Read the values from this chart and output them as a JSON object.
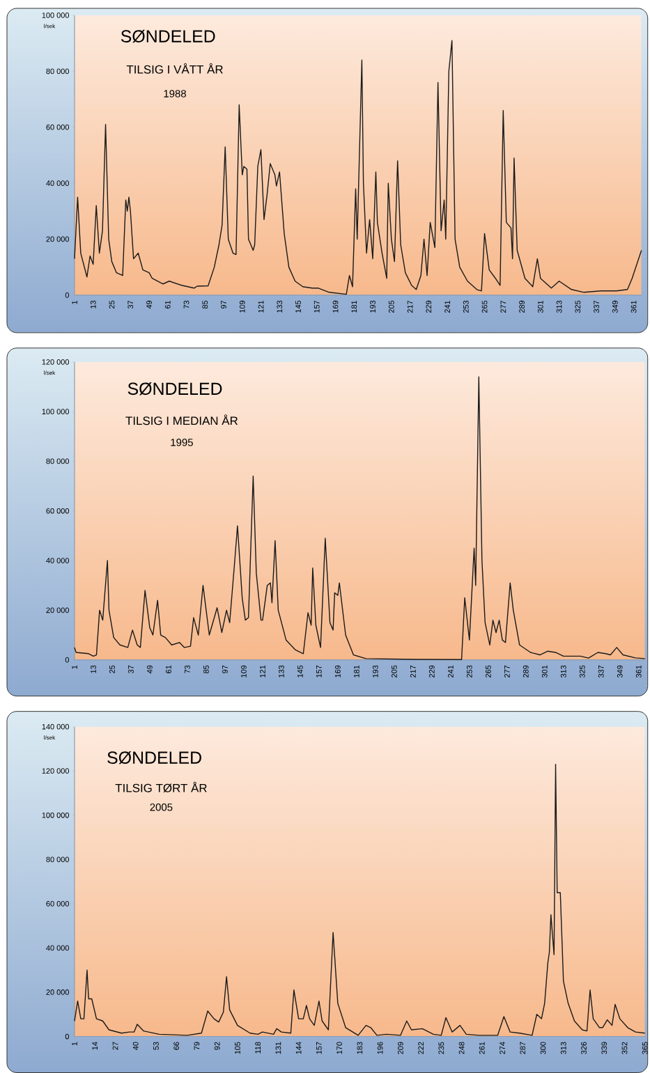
{
  "chart_data": [
    {
      "type": "line",
      "title": "SØNDELED",
      "subtitle": "TILSIG I VÅTT ÅR",
      "annotations": [
        "1988"
      ],
      "ylabel": "l/sek",
      "color": "#1a1a1a",
      "line_style": "solid",
      "xlim": [
        1,
        366
      ],
      "xticks": [
        1,
        13,
        25,
        37,
        49,
        61,
        73,
        85,
        97,
        109,
        121,
        133,
        145,
        157,
        169,
        181,
        193,
        205,
        217,
        229,
        241,
        253,
        265,
        277,
        289,
        301,
        313,
        325,
        337,
        349,
        361
      ],
      "ylim": [
        0,
        100000
      ],
      "yticks": [
        0,
        {
          "value": 20000,
          "label": "20 000"
        },
        {
          "value": 40000,
          "label": "40 000"
        },
        {
          "value": 60000,
          "label": "60 000"
        },
        {
          "value": 80000,
          "label": "80 000"
        },
        {
          "value": 100000,
          "label": "100 000"
        }
      ],
      "x": [
        1,
        3,
        5,
        9,
        11,
        13,
        15,
        17,
        19,
        21,
        23,
        25,
        28,
        32,
        34,
        35,
        36,
        37,
        39,
        42,
        45,
        49,
        51,
        58,
        62,
        70,
        78,
        80,
        87,
        91,
        94,
        96,
        98,
        100,
        103,
        105,
        107,
        109,
        110,
        112,
        113,
        116,
        117,
        119,
        121,
        123,
        125,
        127,
        130,
        131,
        133,
        136,
        139,
        143,
        148,
        154,
        158,
        165,
        176,
        178,
        180,
        182,
        183,
        186,
        187,
        189,
        191,
        193,
        195,
        196,
        199,
        202,
        203,
        205,
        207,
        209,
        211,
        214,
        218,
        221,
        224,
        226,
        228,
        230,
        233,
        235,
        237,
        239,
        240,
        242,
        244,
        246,
        249,
        254,
        260,
        263,
        265,
        268,
        272,
        275,
        277,
        279,
        282,
        283,
        284,
        286,
        291,
        296,
        299,
        301,
        308,
        313,
        321,
        329,
        340,
        350,
        357,
        360,
        366
      ],
      "values": [
        13000,
        35000,
        15000,
        6500,
        14000,
        11000,
        32000,
        15000,
        23000,
        61000,
        20000,
        12000,
        8000,
        7000,
        34000,
        30000,
        35000,
        30000,
        13000,
        15000,
        9000,
        8000,
        6000,
        4000,
        5000,
        3500,
        2500,
        3200,
        3300,
        10000,
        18000,
        25000,
        53000,
        20000,
        15000,
        14500,
        68000,
        43000,
        46000,
        45000,
        20000,
        16000,
        18000,
        46000,
        52000,
        27000,
        36000,
        47000,
        43000,
        39000,
        44000,
        22000,
        10000,
        5000,
        3000,
        2500,
        2500,
        1000,
        300,
        7000,
        3000,
        38000,
        20000,
        84000,
        40000,
        15000,
        27000,
        13000,
        44000,
        26000,
        15000,
        6000,
        40000,
        20000,
        12000,
        48000,
        18000,
        8000,
        3500,
        2000,
        7000,
        20000,
        7000,
        26000,
        17000,
        76000,
        23000,
        34000,
        20000,
        80000,
        91000,
        20000,
        10000,
        5000,
        2000,
        1500,
        22000,
        9000,
        6000,
        3500,
        66000,
        26000,
        24000,
        13000,
        49000,
        16000,
        6000,
        3000,
        13000,
        6000,
        2500,
        5000,
        2000,
        1000,
        1500,
        1500,
        2000,
        6000,
        16000
      ]
    },
    {
      "type": "line",
      "title": "SØNDELED",
      "subtitle": "TILSIG I MEDIAN ÅR",
      "annotations": [
        "1995"
      ],
      "ylabel": "l/sek",
      "color": "#1a1a1a",
      "line_style": "solid",
      "xlim": [
        1,
        365
      ],
      "xticks": [
        1,
        13,
        25,
        37,
        49,
        61,
        73,
        85,
        97,
        109,
        121,
        133,
        145,
        157,
        169,
        181,
        193,
        205,
        217,
        229,
        241,
        253,
        265,
        277,
        289,
        301,
        313,
        325,
        337,
        349,
        361
      ],
      "ylim": [
        0,
        120000
      ],
      "yticks": [
        0,
        {
          "value": 20000,
          "label": "20 000"
        },
        {
          "value": 40000,
          "label": "40 000"
        },
        {
          "value": 60000,
          "label": "60 000"
        },
        {
          "value": 80000,
          "label": "80 000"
        },
        {
          "value": 100000,
          "label": "100 000"
        },
        {
          "value": 120000,
          "label": "120 000"
        }
      ],
      "x": [
        1,
        2,
        10,
        13,
        15,
        17,
        19,
        22,
        23,
        26,
        30,
        35,
        38,
        41,
        43,
        46,
        49,
        51,
        54,
        56,
        59,
        63,
        68,
        71,
        75,
        77,
        80,
        83,
        87,
        92,
        95,
        98,
        100,
        103,
        105,
        108,
        110,
        112,
        115,
        117,
        120,
        121,
        124,
        126,
        127,
        129,
        131,
        136,
        142,
        147,
        150,
        152,
        153,
        155,
        158,
        161,
        164,
        166,
        167,
        169,
        170,
        174,
        179,
        187,
        218,
        248,
        250,
        253,
        256,
        257,
        259,
        261,
        263,
        266,
        268,
        270,
        272,
        274,
        276,
        279,
        281,
        285,
        292,
        298,
        303,
        308,
        313,
        324,
        329,
        335,
        340,
        343,
        347,
        351,
        359,
        365
      ],
      "values": [
        5000,
        3000,
        2500,
        1500,
        2000,
        20000,
        16000,
        40000,
        20000,
        9000,
        6000,
        5000,
        12000,
        6000,
        5000,
        28000,
        13000,
        10000,
        24000,
        10000,
        9000,
        6000,
        7000,
        5000,
        5500,
        17000,
        10000,
        30000,
        10000,
        21000,
        11000,
        20000,
        15000,
        38000,
        54000,
        25000,
        16000,
        17000,
        74000,
        35000,
        16000,
        16000,
        30000,
        31000,
        23000,
        48000,
        20000,
        8000,
        4000,
        2500,
        19000,
        14000,
        37000,
        14000,
        5000,
        49000,
        15000,
        12000,
        27000,
        26000,
        31000,
        10000,
        2000,
        500,
        200,
        100,
        25000,
        8000,
        45000,
        30000,
        114000,
        40000,
        15000,
        6000,
        16000,
        11000,
        16000,
        8000,
        7000,
        31000,
        20000,
        6000,
        3000,
        2000,
        3500,
        3000,
        1500,
        1500,
        700,
        3000,
        2500,
        2000,
        5000,
        2000,
        800,
        500
      ]
    },
    {
      "type": "line",
      "title": "SØNDELED",
      "subtitle": "TILSIG TØRT ÅR",
      "annotations": [
        "2005"
      ],
      "ylabel": "l/sek",
      "color": "#1a1a1a",
      "line_style": "solid",
      "xlim": [
        1,
        365
      ],
      "xticks": [
        1,
        14,
        27,
        40,
        53,
        66,
        79,
        92,
        105,
        118,
        131,
        144,
        157,
        170,
        183,
        196,
        209,
        222,
        235,
        248,
        261,
        274,
        287,
        300,
        313,
        326,
        339,
        352,
        365
      ],
      "ylim": [
        0,
        140000
      ],
      "yticks": [
        0,
        {
          "value": 20000,
          "label": "20 000"
        },
        {
          "value": 40000,
          "label": "40 000"
        },
        {
          "value": 60000,
          "label": "60 000"
        },
        {
          "value": 80000,
          "label": "80 000"
        },
        {
          "value": 100000,
          "label": "100 000"
        },
        {
          "value": 120000,
          "label": "120 000"
        },
        {
          "value": 140000,
          "label": "140 000"
        }
      ],
      "x": [
        1,
        3,
        5,
        7,
        9,
        10,
        12,
        15,
        19,
        23,
        31,
        36,
        39,
        41,
        45,
        55,
        73,
        82,
        86,
        90,
        93,
        96,
        98,
        100,
        105,
        113,
        118,
        121,
        128,
        130,
        133,
        139,
        141,
        144,
        147,
        149,
        151,
        154,
        157,
        159,
        163,
        166,
        169,
        174,
        182,
        187,
        190,
        194,
        200,
        209,
        213,
        216,
        223,
        230,
        235,
        238,
        242,
        247,
        251,
        259,
        271,
        275,
        279,
        285,
        293,
        296,
        299,
        301,
        303,
        304,
        305,
        307,
        308,
        309,
        311,
        313,
        316,
        320,
        325,
        328,
        330,
        332,
        336,
        338,
        341,
        344,
        346,
        349,
        354,
        359,
        365
      ],
      "values": [
        7000,
        16000,
        8000,
        8000,
        30000,
        17000,
        17000,
        8000,
        7000,
        3000,
        1500,
        2000,
        2000,
        5500,
        2500,
        1000,
        500,
        1500,
        11500,
        8000,
        6500,
        11000,
        27000,
        12000,
        5000,
        1500,
        1000,
        2000,
        1000,
        3500,
        2000,
        1500,
        21000,
        8000,
        8000,
        14000,
        8000,
        5000,
        16000,
        7000,
        3000,
        47000,
        15000,
        4000,
        500,
        5000,
        4000,
        500,
        1000,
        500,
        7000,
        3000,
        3500,
        1000,
        500,
        8500,
        2000,
        5000,
        1000,
        500,
        500,
        9000,
        2000,
        1500,
        500,
        10000,
        8000,
        15000,
        33000,
        38000,
        55000,
        37000,
        123000,
        65000,
        65000,
        25000,
        15000,
        7000,
        3000,
        2500,
        21000,
        8000,
        4000,
        4000,
        7500,
        5000,
        14500,
        8000,
        4000,
        2000,
        1500
      ]
    }
  ]
}
